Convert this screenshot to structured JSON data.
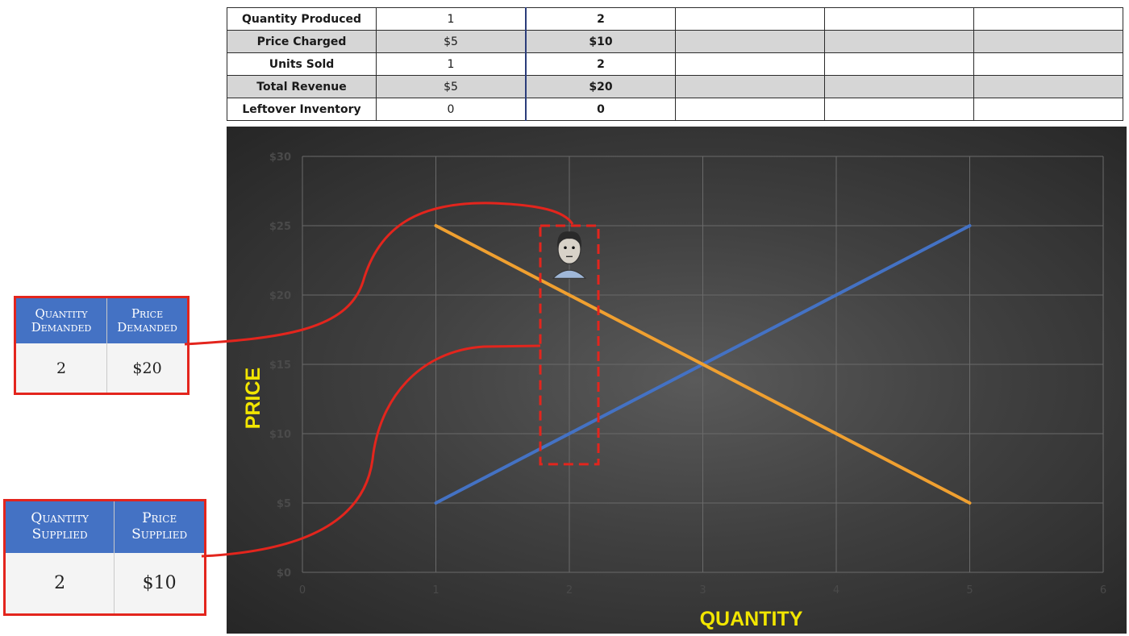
{
  "table": {
    "rows": [
      {
        "label": "Quantity Produced",
        "values": [
          "1",
          "2",
          "",
          "",
          ""
        ],
        "shaded": false
      },
      {
        "label": "Price Charged",
        "values": [
          "$5",
          "$10",
          "",
          "",
          ""
        ],
        "shaded": true
      },
      {
        "label": "Units Sold",
        "values": [
          "1",
          "2",
          "",
          "",
          ""
        ],
        "shaded": false
      },
      {
        "label": "Total Revenue",
        "values": [
          "$5",
          "$20",
          "",
          "",
          ""
        ],
        "shaded": true
      },
      {
        "label": "Leftover Inventory",
        "values": [
          "0",
          "0",
          "",
          "",
          ""
        ],
        "shaded": false
      }
    ]
  },
  "demand_table": {
    "headers": [
      "Quantity Demanded",
      "Price Demanded"
    ],
    "values": [
      "2",
      "$20"
    ]
  },
  "supply_table": {
    "headers": [
      "Quantity Supplied",
      "Price Supplied"
    ],
    "values": [
      "2",
      "$10"
    ]
  },
  "chart_data": {
    "type": "line",
    "xlabel": "QUANTITY",
    "ylabel": "PRICE",
    "xlim": [
      0,
      6
    ],
    "ylim": [
      0,
      30
    ],
    "x_ticks": [
      "0",
      "1",
      "2",
      "3",
      "4",
      "5",
      "6"
    ],
    "y_ticks": [
      "$0",
      "$5",
      "$10",
      "$15",
      "$20",
      "$25",
      "$30"
    ],
    "grid": true,
    "series": [
      {
        "x": [
          1,
          5
        ],
        "y": [
          5,
          25
        ],
        "color": "#4472c4"
      },
      {
        "x": [
          1,
          5
        ],
        "y": [
          25,
          5
        ],
        "color": "#f0a030"
      }
    ],
    "highlight_x": 2,
    "label_color": "#f2e600",
    "highlight_color": "#e3251d"
  }
}
